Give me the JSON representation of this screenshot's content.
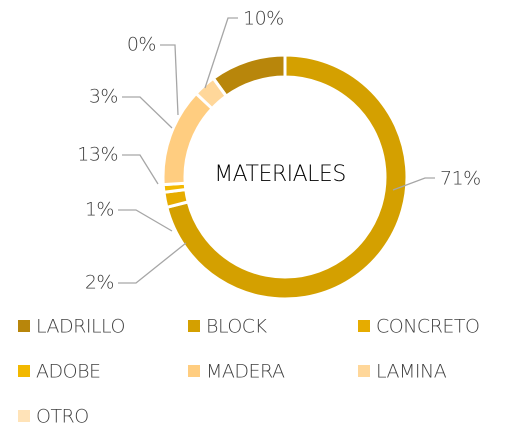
{
  "chart_data": {
    "type": "donut",
    "title": "MATERIALES",
    "categories": [
      "LADRILLO",
      "BLOCK",
      "CONCRETO",
      "ADOBE",
      "MADERA",
      "LAMINA",
      "OTRO"
    ],
    "values": [
      10,
      71,
      2,
      1,
      13,
      3,
      0
    ],
    "value_labels": [
      "10%",
      "71%",
      "2%",
      "1%",
      "13%",
      "3%",
      "0%"
    ],
    "colors": [
      "#b8860b",
      "#d4a000",
      "#e6ac00",
      "#f2b800",
      "#ffcd80",
      "#ffd79a",
      "#ffe3b8"
    ],
    "legend": "bottom"
  }
}
